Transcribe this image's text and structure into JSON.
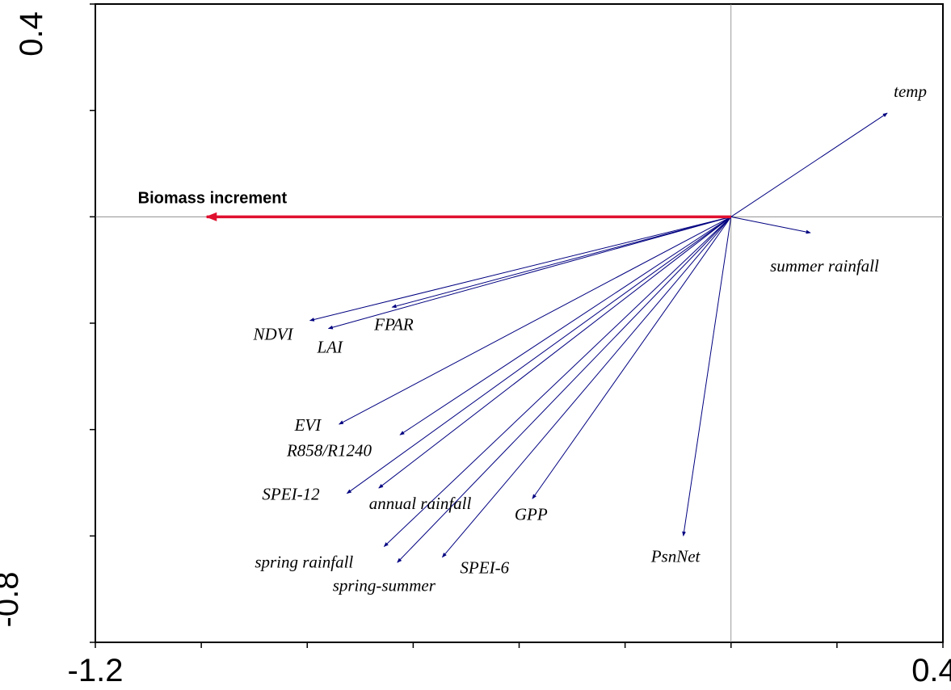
{
  "chart_data": {
    "type": "scatter",
    "subtype": "biplot",
    "title": "",
    "xlabel": "",
    "ylabel": "",
    "xlim": [
      -1.2,
      0.4
    ],
    "ylim": [
      -0.8,
      0.4
    ],
    "x_tick_labels": [
      "-1.2",
      "0.4"
    ],
    "y_tick_labels": [
      "0.4",
      "-0.8"
    ],
    "grid": false,
    "reference_lines": {
      "x": 0,
      "y": 0
    },
    "colors": {
      "response": "#e0102f",
      "variables": "#000080",
      "axis": "#000000",
      "reference": "#808080"
    },
    "response": {
      "name": "Biomass increment",
      "x": -0.99,
      "y": 0.0
    },
    "variables": [
      {
        "name": "temp",
        "x": 0.295,
        "y": 0.195
      },
      {
        "name": "summer rainfall",
        "x": 0.15,
        "y": -0.03
      },
      {
        "name": "NDVI",
        "x": -0.795,
        "y": -0.195
      },
      {
        "name": "FPAR",
        "x": -0.64,
        "y": -0.17
      },
      {
        "name": "LAI",
        "x": -0.76,
        "y": -0.21
      },
      {
        "name": "EVI",
        "x": -0.74,
        "y": -0.39
      },
      {
        "name": "R858/R1240",
        "x": -0.625,
        "y": -0.41
      },
      {
        "name": "SPEI-12",
        "x": -0.725,
        "y": -0.52
      },
      {
        "name": "annual rainfall",
        "x": -0.665,
        "y": -0.51
      },
      {
        "name": "GPP",
        "x": -0.375,
        "y": -0.53
      },
      {
        "name": "spring rainfall",
        "x": -0.655,
        "y": -0.62
      },
      {
        "name": "spring-summer",
        "x": -0.63,
        "y": -0.65
      },
      {
        "name": "SPEI-6",
        "x": -0.545,
        "y": -0.64
      },
      {
        "name": "PsnNet",
        "x": -0.09,
        "y": -0.6
      }
    ]
  }
}
